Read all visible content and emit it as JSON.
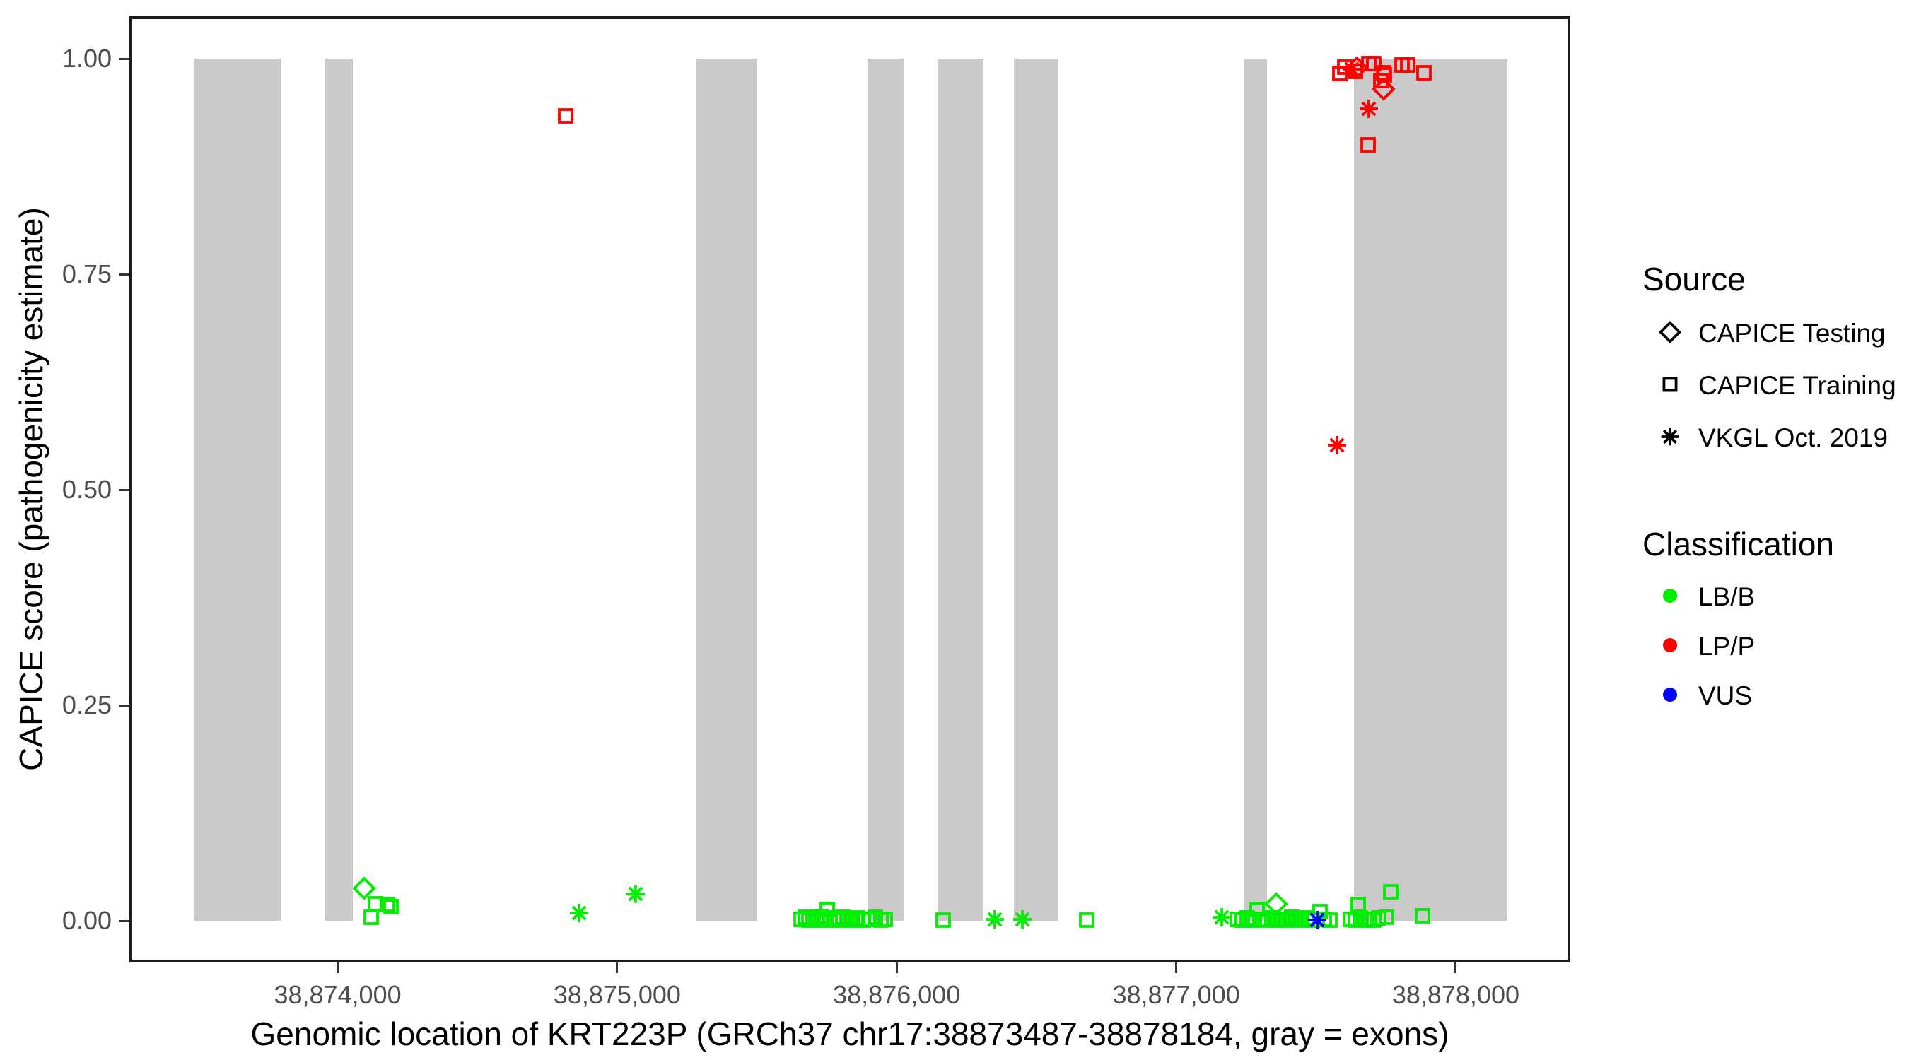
{
  "figure": {
    "x_axis_title": "Genomic location of KRT223P (GRCh37 chr17:38873487-38878184, gray = exons)",
    "y_axis_title": "CAPICE score (pathogenicity estimate)"
  },
  "legend": {
    "source": {
      "title": "Source",
      "items": [
        {
          "label": "CAPICE Testing",
          "shape": "diamond"
        },
        {
          "label": "CAPICE Training",
          "shape": "square"
        },
        {
          "label": "VKGL Oct. 2019",
          "shape": "asterisk"
        }
      ]
    },
    "classification": {
      "title": "Classification",
      "items": [
        {
          "label": "LB/B",
          "color": "#00EE00"
        },
        {
          "label": "LP/P",
          "color": "#FF0000"
        },
        {
          "label": "VUS",
          "color": "#0000FF"
        }
      ]
    }
  },
  "chart_data": {
    "type": "scatter",
    "title": "",
    "xlabel": "Genomic location of KRT223P (GRCh37 chr17:38873487-38878184, gray = exons)",
    "ylabel": "CAPICE score (pathogenicity estimate)",
    "legend_position": "right",
    "grid": false,
    "x_range": [
      38873255,
      38878410
    ],
    "ylim": [
      0,
      1
    ],
    "x_ticks": [
      {
        "value": 38874000,
        "label": "38,874,000"
      },
      {
        "value": 38875000,
        "label": "38,875,000"
      },
      {
        "value": 38876000,
        "label": "38,876,000"
      },
      {
        "value": 38877000,
        "label": "38,877,000"
      },
      {
        "value": 38878000,
        "label": "38,878,000"
      }
    ],
    "y_ticks": [
      {
        "value": 0.0,
        "label": "0.00"
      },
      {
        "value": 0.25,
        "label": "0.25"
      },
      {
        "value": 0.5,
        "label": "0.50"
      },
      {
        "value": 0.75,
        "label": "0.75"
      },
      {
        "value": 1.0,
        "label": "1.00"
      }
    ],
    "gene": {
      "name": "KRT223P",
      "assembly": "GRCh37",
      "chromosome": "chr17",
      "start": 38873487,
      "end": 38878184
    },
    "exon_color": "#CACACA",
    "class_colors": {
      "LB/B": "#00EE00",
      "LP/P": "#FF0000",
      "VUS": "#0000FF"
    },
    "shape_codes": {
      "testing": "diamond",
      "training": "square",
      "vkgl": "asterisk"
    },
    "source_names": {
      "testing": "CAPICE Testing",
      "training": "CAPICE Training",
      "vkgl": "VKGL Oct. 2019"
    },
    "exons": [
      [
        38873487,
        38873800
      ],
      [
        38873955,
        38874054
      ],
      [
        38875284,
        38875501
      ],
      [
        38875896,
        38876025
      ],
      [
        38876146,
        38876310
      ],
      [
        38876419,
        38876575
      ],
      [
        38877243,
        38877324
      ],
      [
        38877637,
        38878184
      ]
    ],
    "points": [
      [
        38874094,
        0.038,
        "testing",
        "LB/B"
      ],
      [
        38874119,
        0.004,
        "training",
        "LB/B"
      ],
      [
        38874136,
        0.02,
        "training",
        "LB/B"
      ],
      [
        38874177,
        0.019,
        "training",
        "LB/B"
      ],
      [
        38874190,
        0.016,
        "training",
        "LB/B"
      ],
      [
        38874864,
        0.009,
        "vkgl",
        "LB/B"
      ],
      [
        38875066,
        0.031,
        "vkgl",
        "LB/B"
      ],
      [
        38875658,
        0.002,
        "training",
        "LB/B"
      ],
      [
        38875672,
        0.004,
        "training",
        "LB/B"
      ],
      [
        38875686,
        0.001,
        "training",
        "LB/B"
      ],
      [
        38875700,
        0.003,
        "training",
        "LB/B"
      ],
      [
        38875714,
        0.001,
        "training",
        "LB/B"
      ],
      [
        38875728,
        0.005,
        "training",
        "LB/B"
      ],
      [
        38875742,
        0.002,
        "training",
        "LB/B"
      ],
      [
        38875751,
        0.013,
        "training",
        "LB/B"
      ],
      [
        38875762,
        0.001,
        "training",
        "LB/B"
      ],
      [
        38875776,
        0.003,
        "training",
        "LB/B"
      ],
      [
        38875792,
        0.001,
        "training",
        "LB/B"
      ],
      [
        38875808,
        0.004,
        "training",
        "LB/B"
      ],
      [
        38875824,
        0.002,
        "training",
        "LB/B"
      ],
      [
        38875842,
        0.001,
        "training",
        "LB/B"
      ],
      [
        38875860,
        0.003,
        "training",
        "LB/B"
      ],
      [
        38875880,
        0.001,
        "training",
        "LB/B"
      ],
      [
        38875902,
        0.002,
        "training",
        "LB/B"
      ],
      [
        38875924,
        0.004,
        "training",
        "LB/B"
      ],
      [
        38875944,
        0.001,
        "training",
        "LB/B"
      ],
      [
        38875960,
        0.002,
        "training",
        "LB/B"
      ],
      [
        38876166,
        0.001,
        "training",
        "LB/B"
      ],
      [
        38876350,
        0.002,
        "vkgl",
        "LB/B"
      ],
      [
        38876449,
        0.002,
        "vkgl",
        "LB/B"
      ],
      [
        38876681,
        0.001,
        "training",
        "LB/B"
      ],
      [
        38877162,
        0.004,
        "vkgl",
        "LB/B"
      ],
      [
        38877218,
        0.002,
        "training",
        "LB/B"
      ],
      [
        38877236,
        0.001,
        "training",
        "LB/B"
      ],
      [
        38877254,
        0.003,
        "training",
        "LB/B"
      ],
      [
        38877272,
        0.001,
        "training",
        "LB/B"
      ],
      [
        38877289,
        0.013,
        "training",
        "LB/B"
      ],
      [
        38877306,
        0.002,
        "training",
        "LB/B"
      ],
      [
        38877324,
        0.001,
        "training",
        "LB/B"
      ],
      [
        38877342,
        0.003,
        "training",
        "LB/B"
      ],
      [
        38877360,
        0.001,
        "training",
        "LB/B"
      ],
      [
        38877378,
        0.002,
        "training",
        "LB/B"
      ],
      [
        38877396,
        0.001,
        "training",
        "LB/B"
      ],
      [
        38877414,
        0.004,
        "training",
        "LB/B"
      ],
      [
        38877432,
        0.002,
        "training",
        "LB/B"
      ],
      [
        38877450,
        0.001,
        "training",
        "LB/B"
      ],
      [
        38877468,
        0.003,
        "training",
        "LB/B"
      ],
      [
        38877486,
        0.001,
        "training",
        "LB/B"
      ],
      [
        38877357,
        0.02,
        "testing",
        "LB/B"
      ],
      [
        38877514,
        0.011,
        "training",
        "LB/B"
      ],
      [
        38877530,
        0.002,
        "training",
        "LB/B"
      ],
      [
        38877550,
        0.001,
        "training",
        "LB/B"
      ],
      [
        38877624,
        0.002,
        "training",
        "LB/B"
      ],
      [
        38877640,
        0.001,
        "training",
        "LB/B"
      ],
      [
        38877652,
        0.019,
        "training",
        "LB/B"
      ],
      [
        38877660,
        0.003,
        "training",
        "LB/B"
      ],
      [
        38877676,
        0.001,
        "training",
        "LB/B"
      ],
      [
        38877692,
        0.002,
        "training",
        "LB/B"
      ],
      [
        38877708,
        0.001,
        "training",
        "LB/B"
      ],
      [
        38877724,
        0.003,
        "training",
        "LB/B"
      ],
      [
        38877753,
        0.004,
        "training",
        "LB/B"
      ],
      [
        38877768,
        0.034,
        "training",
        "LB/B"
      ],
      [
        38877882,
        0.006,
        "training",
        "LB/B"
      ],
      [
        38874816,
        0.934,
        "training",
        "LP/P"
      ],
      [
        38877576,
        0.552,
        "vkgl",
        "LP/P"
      ],
      [
        38877586,
        0.983,
        "training",
        "LP/P"
      ],
      [
        38877604,
        0.99,
        "training",
        "LP/P"
      ],
      [
        38877629,
        0.988,
        "vkgl",
        "LP/P"
      ],
      [
        38877640,
        0.985,
        "training",
        "LP/P"
      ],
      [
        38877645,
        0.989,
        "testing",
        "LP/P"
      ],
      [
        38877687,
        0.9,
        "training",
        "LP/P"
      ],
      [
        38877690,
        0.942,
        "vkgl",
        "LP/P"
      ],
      [
        38877690,
        0.994,
        "training",
        "LP/P"
      ],
      [
        38877708,
        0.994,
        "training",
        "LP/P"
      ],
      [
        38877731,
        0.975,
        "training",
        "LP/P"
      ],
      [
        38877741,
        0.984,
        "training",
        "LP/P"
      ],
      [
        38877741,
        0.965,
        "testing",
        "LP/P"
      ],
      [
        38877745,
        0.981,
        "training",
        "LP/P"
      ],
      [
        38877809,
        0.993,
        "training",
        "LP/P"
      ],
      [
        38877827,
        0.993,
        "training",
        "LP/P"
      ],
      [
        38877887,
        0.984,
        "training",
        "LP/P"
      ],
      [
        38877504,
        0.001,
        "vkgl",
        "VUS"
      ]
    ]
  }
}
